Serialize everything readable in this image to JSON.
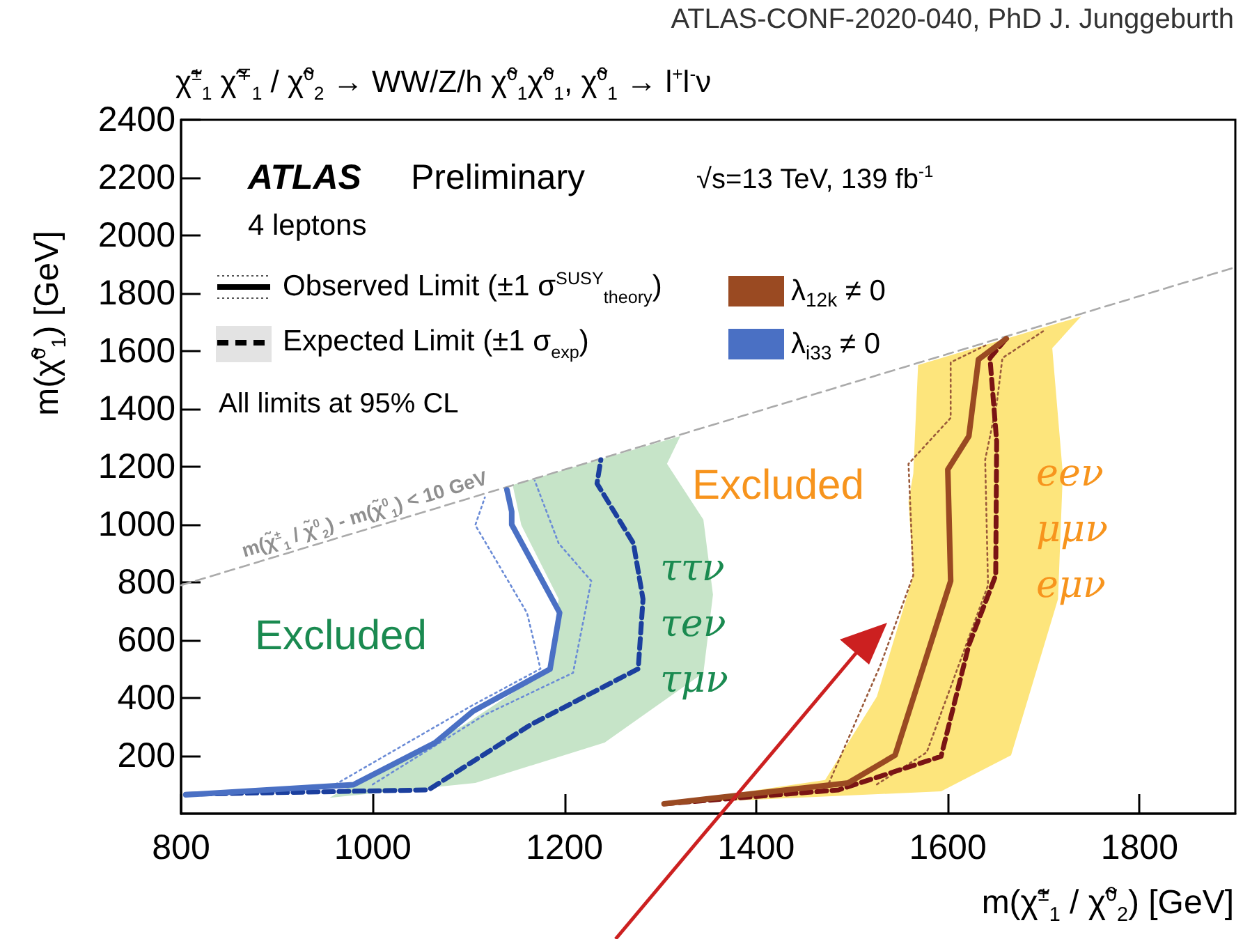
{
  "chart_data": {
    "type": "line",
    "title": "χ̃$^{±}$$_{1}$ χ̃$^{∓}$$_{1}$ / χ̃$^{0}$$_{2}$ → WW/Z/h χ̃$^{0}$$_{1}$χ̃$^{0}$$_{1}$,   χ̃$^{0}$$_{1}$ → l$^{+}$l$^{-}$ν",
    "subtitle": "ATLAS-CONF-2020-040, PhD J. Junggeburth",
    "xlabel": "m(χ̃$^{±}$$_{1}$ / χ̃$^{0}$$_{2}$) [GeV]",
    "ylabel": "m(χ̃$^{0}$$_{1}$) [GeV]",
    "xlim": [
      800,
      1900
    ],
    "xticks": [
      800,
      1000,
      1200,
      1400,
      1600,
      1800
    ],
    "ylim": [
      0,
      2400
    ],
    "yticks": [
      200,
      400,
      600,
      800,
      1000,
      1200,
      1400,
      1600,
      1800,
      2000,
      2200,
      2400
    ],
    "grid": false,
    "legend": "top",
    "marker": "none",
    "series": [
      {
        "type": "area",
        "color": "#c6e4c8",
        "x": [
          955,
          1107,
          1242,
          1345,
          1355,
          1345,
          1307,
          1321,
          1146,
          1155,
          1194,
          1184,
          1096,
          961
        ],
        "values": [
          55,
          106,
          246,
          487,
          757,
          1017,
          1210,
          1306,
          1137,
          998,
          742,
          501,
          308,
          67
        ]
      },
      {
        "type": "area",
        "color": "#fde57c",
        "x": [
          1304,
          1593,
          1666,
          1715,
          1720,
          1709,
          1739,
          1569,
          1564,
          1559,
          1564,
          1526,
          1472
        ],
        "values": [
          34,
          77,
          202,
          742,
          1176,
          1610,
          1720,
          1552,
          1176,
          1080,
          824,
          405,
          116
        ]
      },
      {
        "color": "#aaaaaa",
        "line_style": "dashed",
        "x": [
          800,
          1900
        ],
        "values": [
          790,
          1890
        ]
      },
      {
        "color": "#6a8bd6",
        "line_style": "dotted",
        "x": [
          961,
          1102,
          1175,
          1161,
          1107,
          1117
        ],
        "values": [
          101,
          371,
          501,
          694,
          998,
          1094
        ]
      },
      {
        "color": "#6a8bd6",
        "line_style": "dotted",
        "x": [
          1000,
          1117,
          1209,
          1228,
          1194,
          1169
        ],
        "values": [
          101,
          342,
          487,
          805,
          935,
          1152
        ]
      },
      {
        "color": "#1b3f9e",
        "line_style": "dashed",
        "x": [
          805,
          1058,
          1165,
          1277,
          1282,
          1272,
          1234,
          1238
        ],
        "values": [
          67,
          82,
          308,
          501,
          742,
          935,
          1142,
          1224
        ]
      },
      {
        "name": "λ$_{i33}$ ≠ 0",
        "color": "#4a70c4",
        "line_style": "solid",
        "x": [
          805,
          980,
          1065,
          1105,
          1185,
          1195,
          1145,
          1145,
          1140
        ],
        "values": [
          65,
          100,
          245,
          355,
          500,
          695,
          1000,
          1045,
          1120
        ]
      },
      {
        "color": "#9a5a3a",
        "line_style": "dotted",
        "x": [
          1476,
          1530,
          1564,
          1559,
          1603,
          1603,
          1642
        ],
        "values": [
          106,
          516,
          824,
          1210,
          1369,
          1561,
          1624
        ]
      },
      {
        "color": "#9a5a3a",
        "line_style": "dotted",
        "x": [
          1526,
          1578,
          1642,
          1639,
          1651,
          1657,
          1701
        ],
        "values": [
          101,
          212,
          790,
          1224,
          1417,
          1576,
          1672
        ]
      },
      {
        "color": "#7a1414",
        "line_style": "dashed",
        "x": [
          1304,
          1486,
          1593,
          1622,
          1650,
          1651,
          1644,
          1661
        ],
        "values": [
          34,
          82,
          198,
          583,
          824,
          1287,
          1576,
          1643
        ]
      },
      {
        "name": "λ$_{12k}$ ≠ 0",
        "color": "#9a4a22",
        "line_style": "solid",
        "x": [
          1304,
          1496,
          1545,
          1603,
          1600,
          1622,
          1632,
          1661
        ],
        "values": [
          34,
          106,
          202,
          805,
          1190,
          1306,
          1571,
          1643
        ]
      }
    ],
    "annotations": [
      "ATLAS",
      "Preliminary",
      "4 leptons",
      "√s=13 TeV, 139 fb$^{-1}$",
      "Observed Limit (±1 σ$^{SUSY}$$_{theory}$)",
      "Expected Limit (±1 σ$_{exp}$)",
      "All limits at 95% CL",
      "Excluded",
      "ττν",
      "τeν",
      "τμν",
      "Excluded",
      "eeν",
      "μμν",
      "eμν",
      "m(χ̃$^{±}$$_{1}$ / χ̃$^{0}$$_{2}$) - m(χ̃$^{0}$$_{1}$) < 10 GeV"
    ]
  }
}
